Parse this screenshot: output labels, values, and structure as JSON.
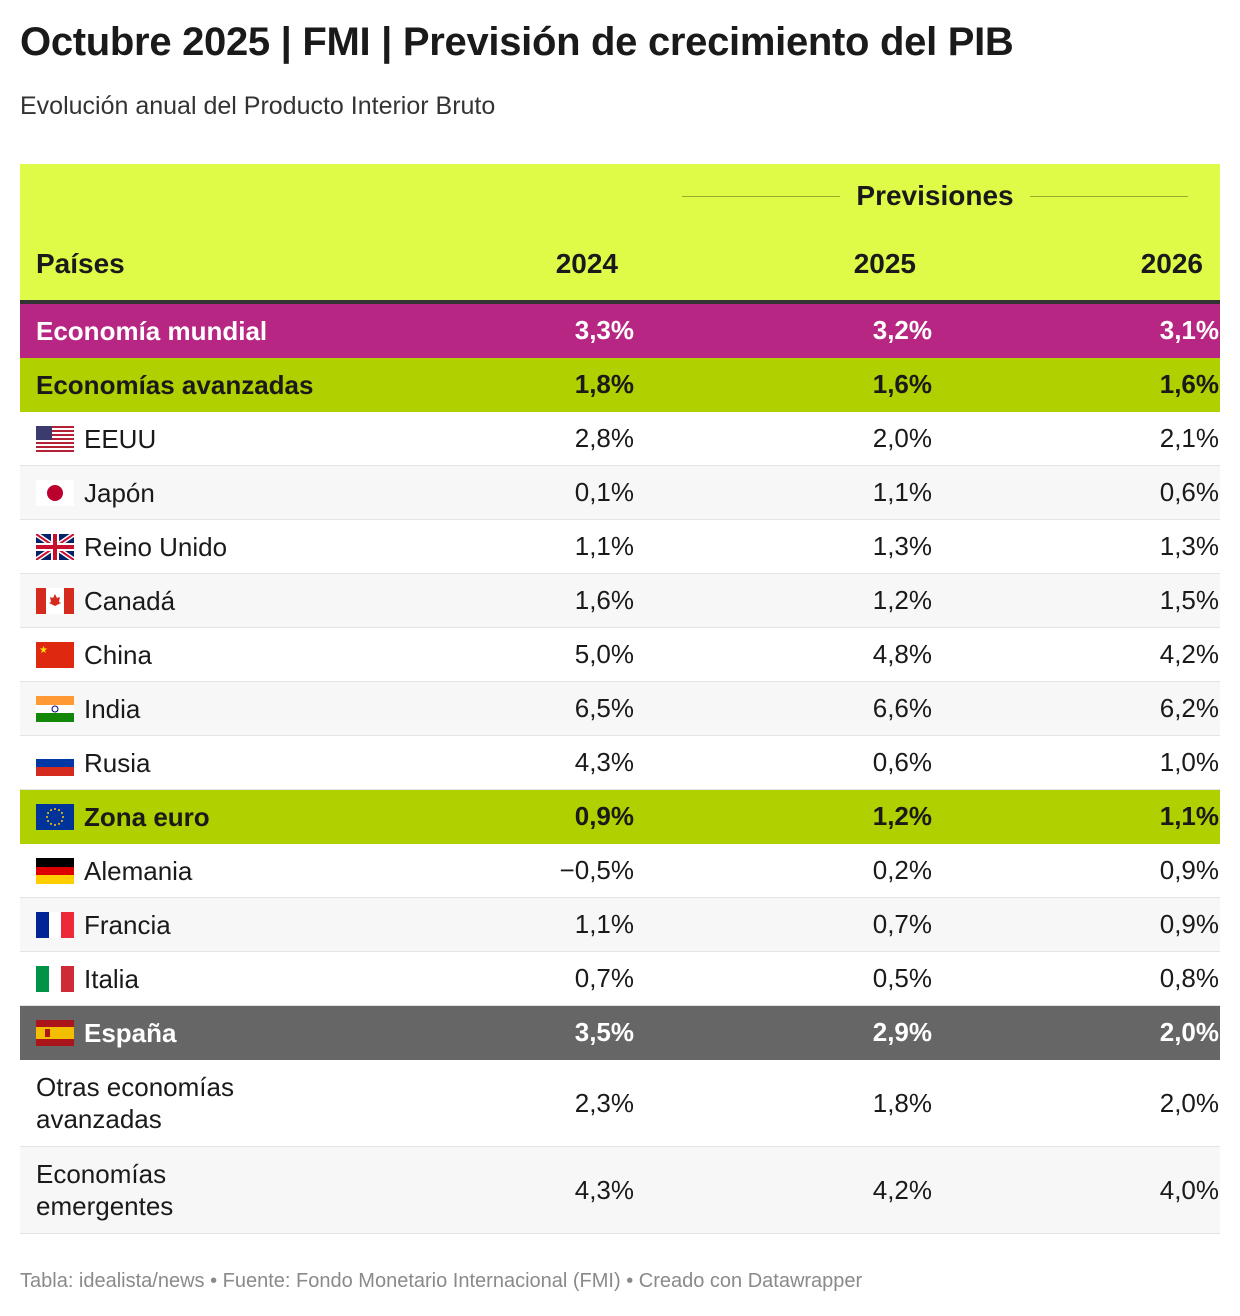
{
  "title": "Octubre 2025 | FMI | Previsión de crecimiento del PIB",
  "subtitle": "Evolución anual del Producto Interior Bruto",
  "footer": "Tabla: idealista/news • Fuente: Fondo Monetario Internacional (FMI) • Creado con Datawrapper",
  "colors": {
    "header": "#dffb47",
    "mundial": "#b72682",
    "group": "#b1d000",
    "spain": "#666666"
  },
  "chart_data": {
    "type": "table",
    "group_header": "Previsiones",
    "columns": [
      "Países",
      "2024",
      "2025",
      "2026"
    ],
    "rows": [
      {
        "name": "Economía mundial",
        "flag": "",
        "style": "mundial",
        "values": [
          "3,3%",
          "3,2%",
          "3,1%"
        ]
      },
      {
        "name": "Economías avanzadas",
        "flag": "",
        "style": "green",
        "values": [
          "1,8%",
          "1,6%",
          "1,6%"
        ]
      },
      {
        "name": "EEUU",
        "flag": "us-flag-icon",
        "style": "",
        "values": [
          "2,8%",
          "2,0%",
          "2,1%"
        ]
      },
      {
        "name": "Japón",
        "flag": "jp-flag-icon",
        "style": "alt",
        "values": [
          "0,1%",
          "1,1%",
          "0,6%"
        ]
      },
      {
        "name": "Reino Unido",
        "flag": "gb-flag-icon",
        "style": "",
        "values": [
          "1,1%",
          "1,3%",
          "1,3%"
        ]
      },
      {
        "name": "Canadá",
        "flag": "ca-flag-icon",
        "style": "alt",
        "values": [
          "1,6%",
          "1,2%",
          "1,5%"
        ]
      },
      {
        "name": "China",
        "flag": "cn-flag-icon",
        "style": "",
        "values": [
          "5,0%",
          "4,8%",
          "4,2%"
        ]
      },
      {
        "name": "India",
        "flag": "in-flag-icon",
        "style": "alt",
        "values": [
          "6,5%",
          "6,6%",
          "6,2%"
        ]
      },
      {
        "name": "Rusia",
        "flag": "ru-flag-icon",
        "style": "",
        "values": [
          "4,3%",
          "0,6%",
          "1,0%"
        ]
      },
      {
        "name": "Zona euro",
        "flag": "eu-flag-icon",
        "style": "green",
        "values": [
          "0,9%",
          "1,2%",
          "1,1%"
        ]
      },
      {
        "name": "Alemania",
        "flag": "de-flag-icon",
        "style": "",
        "values": [
          "−0,5%",
          "0,2%",
          "0,9%"
        ]
      },
      {
        "name": "Francia",
        "flag": "fr-flag-icon",
        "style": "alt",
        "values": [
          "1,1%",
          "0,7%",
          "0,9%"
        ]
      },
      {
        "name": "Italia",
        "flag": "it-flag-icon",
        "style": "",
        "values": [
          "0,7%",
          "0,5%",
          "0,8%"
        ]
      },
      {
        "name": "España",
        "flag": "es-flag-icon",
        "style": "spain",
        "values": [
          "3,5%",
          "2,9%",
          "2,0%"
        ]
      },
      {
        "name": "Otras economías avanzadas",
        "flag": "",
        "style": "tall",
        "values": [
          "2,3%",
          "1,8%",
          "2,0%"
        ]
      },
      {
        "name": "Economías emergentes",
        "flag": "",
        "style": "tall alt",
        "values": [
          "4,3%",
          "4,2%",
          "4,0%"
        ]
      }
    ]
  }
}
